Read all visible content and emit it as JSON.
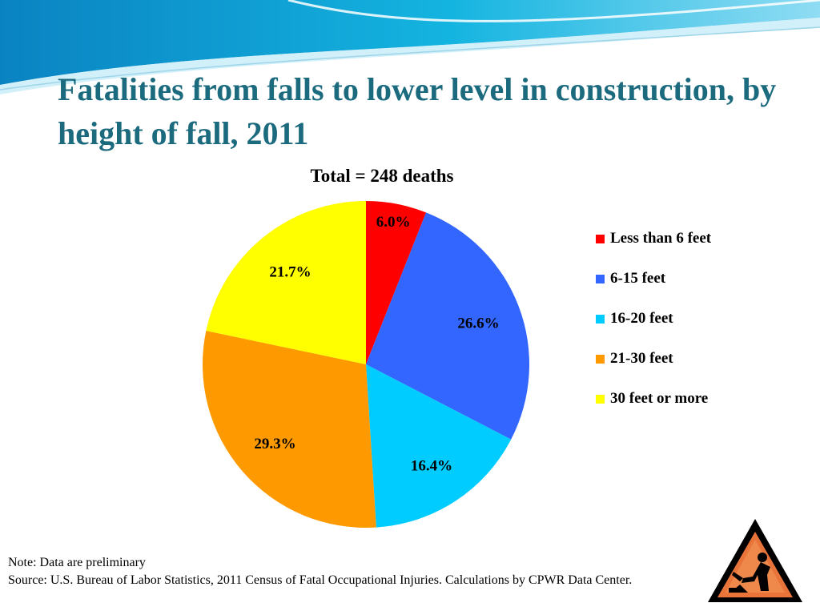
{
  "slide": {
    "title": "Fatalities from falls to lower level in construction, by height of fall, 2011",
    "banner_colors": [
      "#0a83c2",
      "#14b4e0",
      "#8fdcf3"
    ],
    "title_color": "#1b6a7e"
  },
  "chart_data": {
    "type": "pie",
    "title": "Total = 248 deaths",
    "categories": [
      "Less than 6 feet",
      "6-15 feet",
      "16-20 feet",
      "21-30 feet",
      "30 feet or more"
    ],
    "values": [
      6.0,
      26.6,
      16.4,
      29.3,
      21.7
    ],
    "value_labels": [
      "6.0%",
      "26.6%",
      "16.4%",
      "29.3%",
      "21.7%"
    ],
    "colors": [
      "#ff0000",
      "#3366ff",
      "#00ccff",
      "#ff9900",
      "#ffff00"
    ],
    "start_angle": "12 o'clock",
    "direction": "clockwise",
    "legend_position": "right"
  },
  "footnote": {
    "note": "Note: Data are preliminary",
    "source": "Source: U.S. Bureau of Labor Statistics, 2011 Census of Fatal Occupational Injuries. Calculations by CPWR Data Center."
  },
  "icons": {
    "warning_sign": "construction-worker-warning-sign-icon"
  }
}
